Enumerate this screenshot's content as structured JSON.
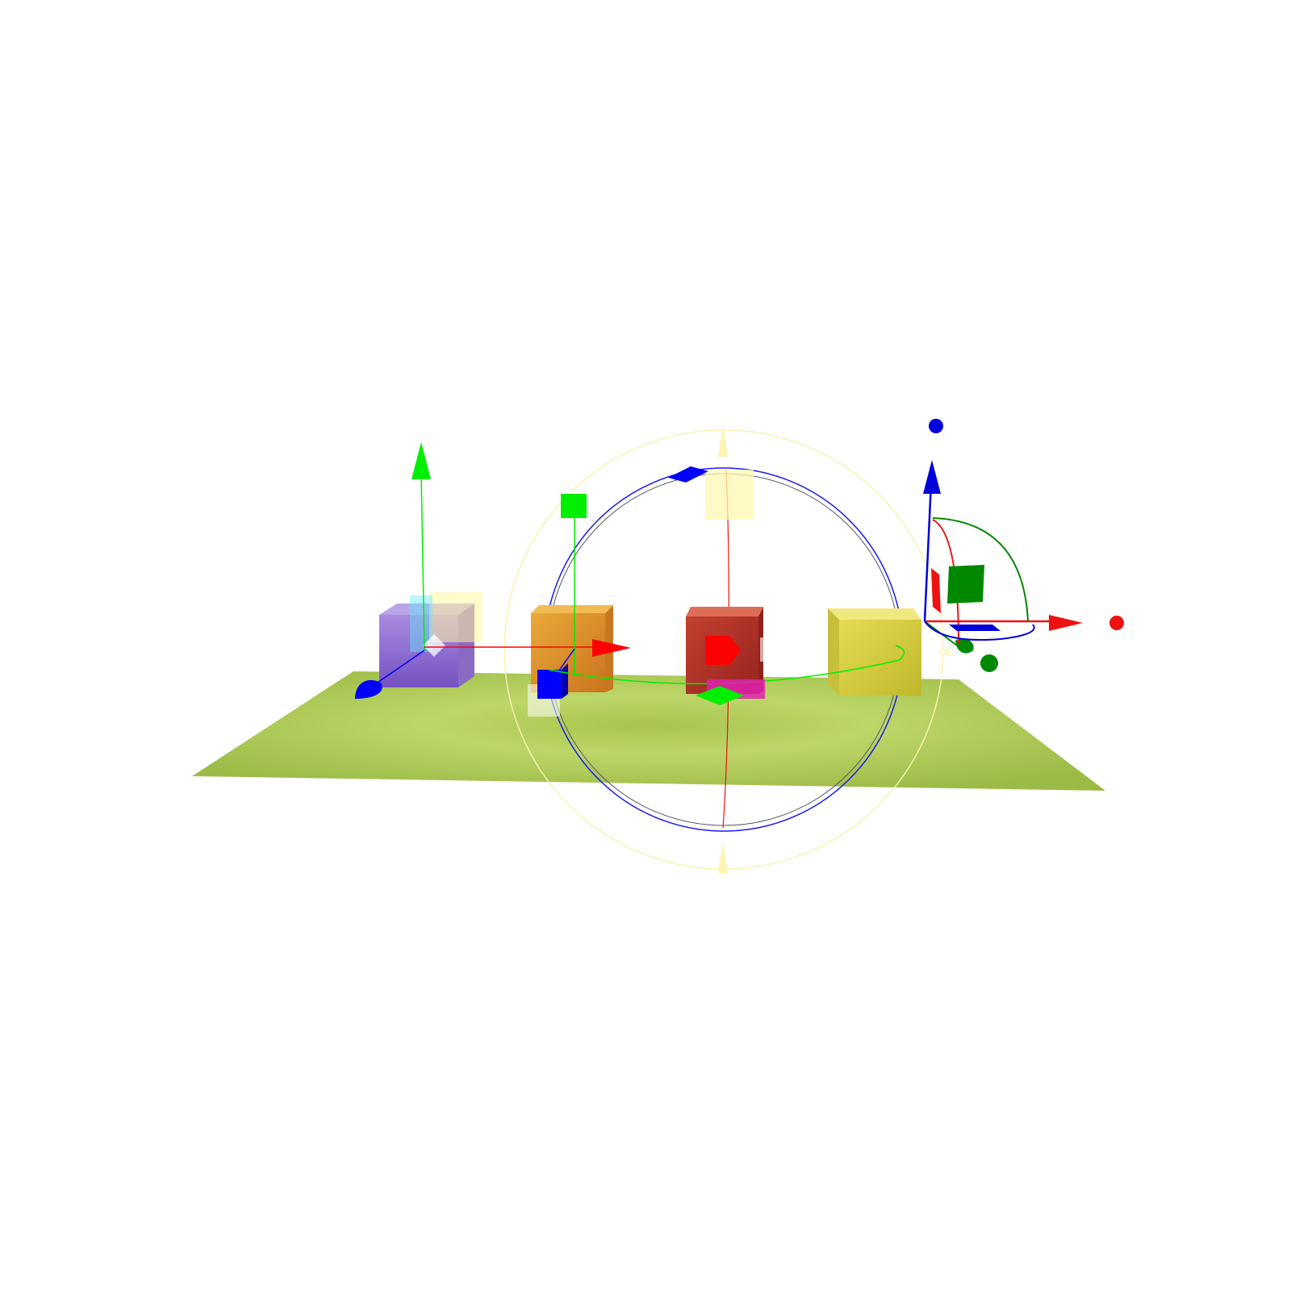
{
  "scene": {
    "background": "#ffffff",
    "ground_color": "#a9c84f",
    "cubes": [
      {
        "name": "purple",
        "color": "#8b6fcf",
        "gizmo": "translate"
      },
      {
        "name": "orange",
        "color": "#e0962a",
        "gizmo": "scale"
      },
      {
        "name": "red",
        "color": "#b83228",
        "gizmo": "rotate"
      },
      {
        "name": "yellow",
        "color": "#d6cf3a",
        "gizmo": "axis-widget"
      }
    ]
  },
  "axes": {
    "x_color": "#ff0000",
    "y_color": "#00ff00",
    "z_color": "#0000ff",
    "dark_x_color": "#ee1111",
    "dark_y_color": "#008800",
    "dark_z_color": "#0000dd"
  },
  "icons": {
    "arrow": "arrow-head-icon",
    "sphere": "sphere-handle-icon",
    "box": "box-handle-icon"
  }
}
